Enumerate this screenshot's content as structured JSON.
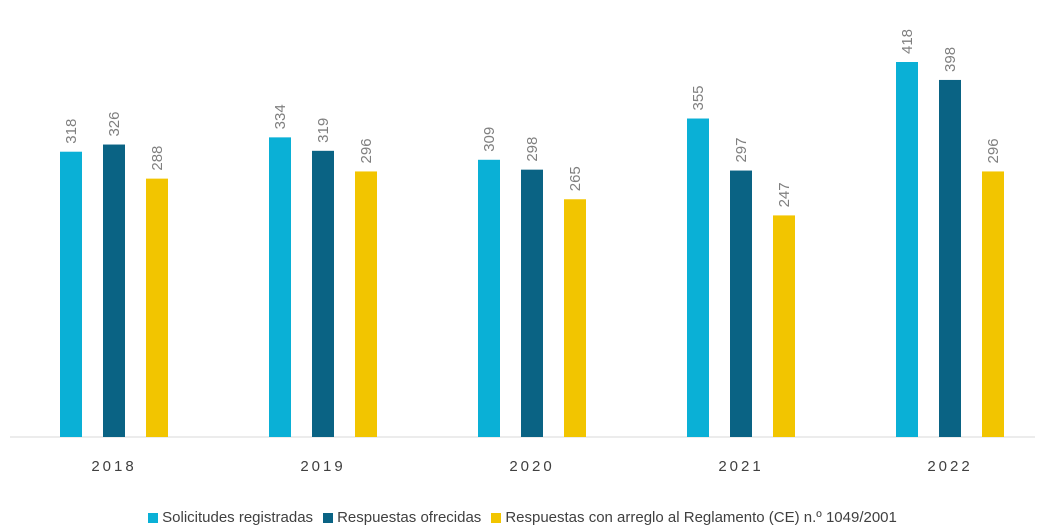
{
  "chart_data": {
    "type": "bar",
    "categories": [
      "2018",
      "2019",
      "2020",
      "2021",
      "2022"
    ],
    "series": [
      {
        "name": "Solicitudes registradas",
        "color": "#0ab0d6",
        "values": [
          318,
          334,
          309,
          355,
          418
        ]
      },
      {
        "name": "Respuestas ofrecidas",
        "color": "#0a6384",
        "values": [
          326,
          319,
          298,
          297,
          398
        ]
      },
      {
        "name": "Respuestas con arreglo al Reglamento (CE) n.º 1049/2001",
        "color": "#f2c500",
        "values": [
          288,
          296,
          265,
          247,
          296
        ]
      }
    ]
  }
}
